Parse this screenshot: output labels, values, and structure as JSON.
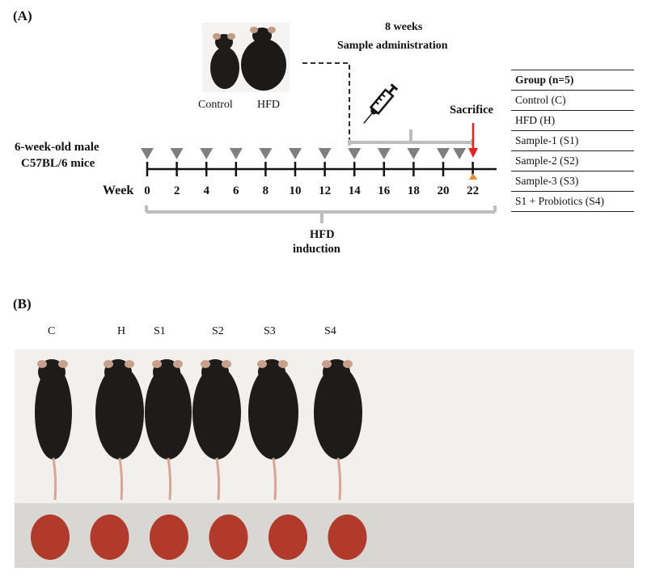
{
  "panel_a_label": "(A)",
  "panel_b_label": "(B)",
  "administration": {
    "duration": "8 weeks",
    "label": "Sample administration"
  },
  "mice_labels": {
    "control": "Control",
    "hfd": "HFD"
  },
  "cohort": {
    "line1": "6-week-old male",
    "line2": "C57BL/6 mice"
  },
  "timeline": {
    "axis_label": "Week",
    "weeks": [
      "0",
      "2",
      "4",
      "6",
      "8",
      "10",
      "12",
      "14",
      "16",
      "18",
      "20",
      "22"
    ],
    "sacrifice_label": "Sacrifice",
    "induction": {
      "line1": "HFD",
      "line2": "induction"
    }
  },
  "group_table": {
    "header": "Group (n=5)",
    "rows": [
      "Control (C)",
      "HFD (H)",
      "Sample-1 (S1)",
      "Sample-2 (S2)",
      "Sample-3 (S3)",
      "S1 + Probiotics (S4)"
    ]
  },
  "photo_groups": [
    "C",
    "H",
    "S1",
    "S2",
    "S3",
    "S4"
  ],
  "colors": {
    "triangle": "#7f7f7f",
    "bracket": "#bdbdbd",
    "arrow": "#e8211d",
    "sacrifice_marker": "#f08a2c",
    "mouse_fur": "#1d1c1b",
    "liver": "#b23a2a"
  }
}
